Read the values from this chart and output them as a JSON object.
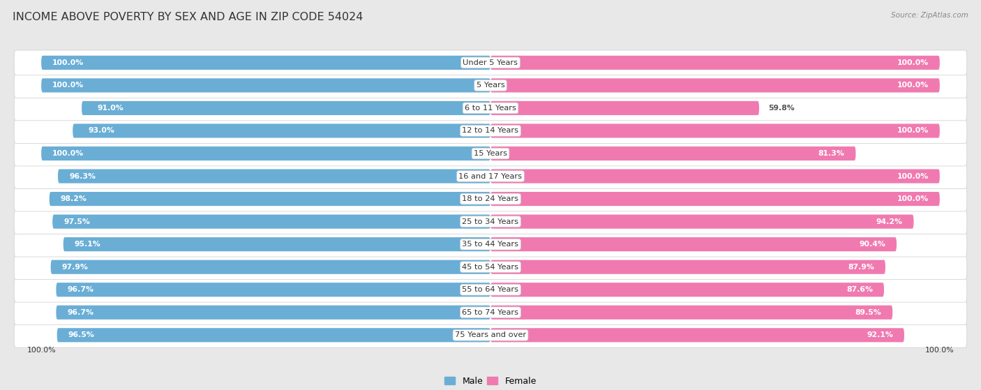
{
  "title": "INCOME ABOVE POVERTY BY SEX AND AGE IN ZIP CODE 54024",
  "source": "Source: ZipAtlas.com",
  "categories": [
    "Under 5 Years",
    "5 Years",
    "6 to 11 Years",
    "12 to 14 Years",
    "15 Years",
    "16 and 17 Years",
    "18 to 24 Years",
    "25 to 34 Years",
    "35 to 44 Years",
    "45 to 54 Years",
    "55 to 64 Years",
    "65 to 74 Years",
    "75 Years and over"
  ],
  "male_values": [
    100.0,
    100.0,
    91.0,
    93.0,
    100.0,
    96.3,
    98.2,
    97.5,
    95.1,
    97.9,
    96.7,
    96.7,
    96.5
  ],
  "female_values": [
    100.0,
    100.0,
    59.8,
    100.0,
    81.3,
    100.0,
    100.0,
    94.2,
    90.4,
    87.9,
    87.6,
    89.5,
    92.1
  ],
  "male_color": "#6aaed6",
  "female_color": "#f07ab0",
  "male_color_light": "#b8d9ee",
  "female_color_light": "#f8bfd8",
  "male_label": "Male",
  "female_label": "Female",
  "background_color": "#e8e8e8",
  "row_color_even": "#f2f2f2",
  "row_color_odd": "#e0e0e0",
  "title_fontsize": 11.5,
  "label_fontsize": 8.2,
  "value_fontsize": 7.8,
  "legend_fontsize": 9,
  "bar_height": 0.62
}
